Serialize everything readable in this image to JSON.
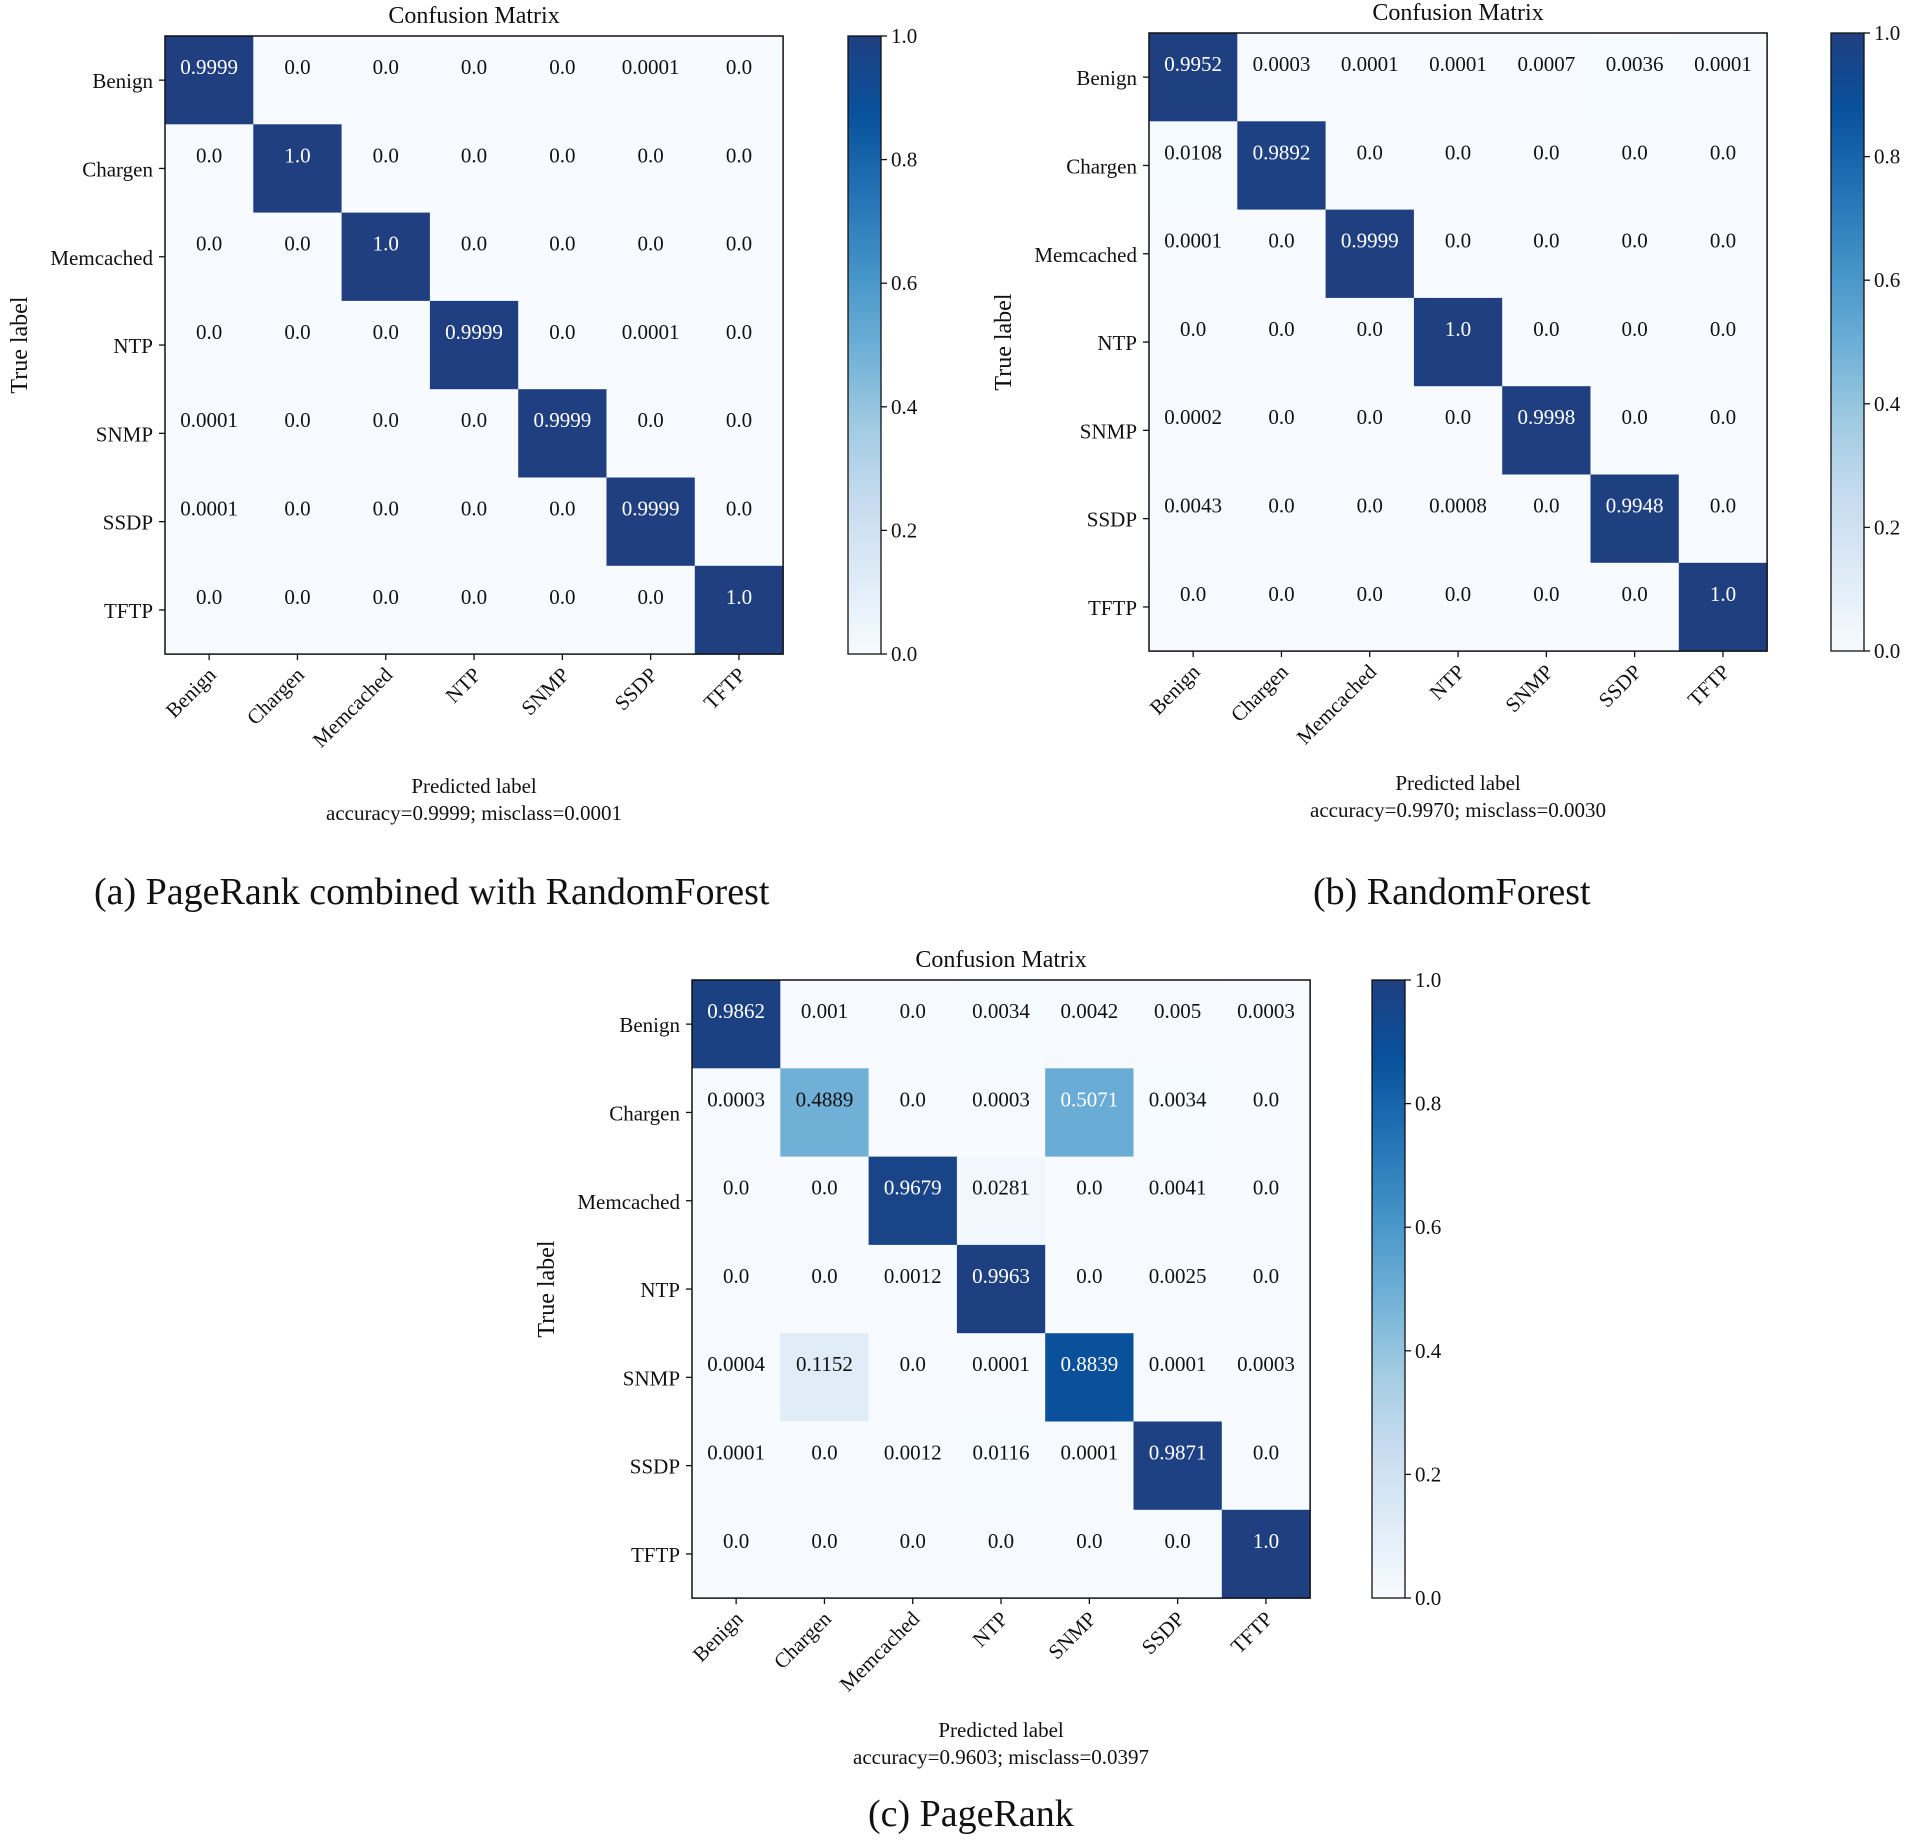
{
  "colorscale": {
    "name": "Blues",
    "stops": [
      "#f7fbff",
      "#deebf7",
      "#c6dbef",
      "#9ecae1",
      "#6baed6",
      "#4292c6",
      "#2171b5",
      "#08519c",
      "#08306b"
    ],
    "diag_color": "#1f3f80"
  },
  "chart_data": [
    {
      "type": "heatmap",
      "panel": "a",
      "title": "Confusion Matrix",
      "caption": "(a) PageRank combined with RandomForest",
      "xlabel": "Predicted label",
      "ylabel": "True label",
      "footer": "accuracy=0.9999; misclass=0.0001",
      "labels": [
        "Benign",
        "Chargen",
        "Memcached",
        "NTP",
        "SNMP",
        "SSDP",
        "TFTP"
      ],
      "matrix": [
        [
          "0.9999",
          "0.0",
          "0.0",
          "0.0",
          "0.0",
          "0.0001",
          "0.0"
        ],
        [
          "0.0",
          "1.0",
          "0.0",
          "0.0",
          "0.0",
          "0.0",
          "0.0"
        ],
        [
          "0.0",
          "0.0",
          "1.0",
          "0.0",
          "0.0",
          "0.0",
          "0.0"
        ],
        [
          "0.0",
          "0.0",
          "0.0",
          "0.9999",
          "0.0",
          "0.0001",
          "0.0"
        ],
        [
          "0.0001",
          "0.0",
          "0.0",
          "0.0",
          "0.9999",
          "0.0",
          "0.0"
        ],
        [
          "0.0001",
          "0.0",
          "0.0",
          "0.0",
          "0.0",
          "0.9999",
          "0.0"
        ],
        [
          "0.0",
          "0.0",
          "0.0",
          "0.0",
          "0.0",
          "0.0",
          "1.0"
        ]
      ],
      "colorbar": {
        "range": [
          0,
          1
        ],
        "ticks": [
          "0.0",
          "0.2",
          "0.4",
          "0.6",
          "0.8",
          "1.0"
        ]
      }
    },
    {
      "type": "heatmap",
      "panel": "b",
      "title": "Confusion Matrix",
      "caption": "(b) RandomForest",
      "xlabel": "Predicted label",
      "ylabel": "True label",
      "footer": "accuracy=0.9970; misclass=0.0030",
      "labels": [
        "Benign",
        "Chargen",
        "Memcached",
        "NTP",
        "SNMP",
        "SSDP",
        "TFTP"
      ],
      "matrix": [
        [
          "0.9952",
          "0.0003",
          "0.0001",
          "0.0001",
          "0.0007",
          "0.0036",
          "0.0001"
        ],
        [
          "0.0108",
          "0.9892",
          "0.0",
          "0.0",
          "0.0",
          "0.0",
          "0.0"
        ],
        [
          "0.0001",
          "0.0",
          "0.9999",
          "0.0",
          "0.0",
          "0.0",
          "0.0"
        ],
        [
          "0.0",
          "0.0",
          "0.0",
          "1.0",
          "0.0",
          "0.0",
          "0.0"
        ],
        [
          "0.0002",
          "0.0",
          "0.0",
          "0.0",
          "0.9998",
          "0.0",
          "0.0"
        ],
        [
          "0.0043",
          "0.0",
          "0.0",
          "0.0008",
          "0.0",
          "0.9948",
          "0.0"
        ],
        [
          "0.0",
          "0.0",
          "0.0",
          "0.0",
          "0.0",
          "0.0",
          "1.0"
        ]
      ],
      "colorbar": {
        "range": [
          0,
          1
        ],
        "ticks": [
          "0.0",
          "0.2",
          "0.4",
          "0.6",
          "0.8",
          "1.0"
        ]
      }
    },
    {
      "type": "heatmap",
      "panel": "c",
      "title": "Confusion Matrix",
      "caption": "(c) PageRank",
      "xlabel": "Predicted label",
      "ylabel": "True label",
      "footer": "accuracy=0.9603; misclass=0.0397",
      "labels": [
        "Benign",
        "Chargen",
        "Memcached",
        "NTP",
        "SNMP",
        "SSDP",
        "TFTP"
      ],
      "matrix": [
        [
          "0.9862",
          "0.001",
          "0.0",
          "0.0034",
          "0.0042",
          "0.005",
          "0.0003"
        ],
        [
          "0.0003",
          "0.4889",
          "0.0",
          "0.0003",
          "0.5071",
          "0.0034",
          "0.0"
        ],
        [
          "0.0",
          "0.0",
          "0.9679",
          "0.0281",
          "0.0",
          "0.0041",
          "0.0"
        ],
        [
          "0.0",
          "0.0",
          "0.0012",
          "0.9963",
          "0.0",
          "0.0025",
          "0.0"
        ],
        [
          "0.0004",
          "0.1152",
          "0.0",
          "0.0001",
          "0.8839",
          "0.0001",
          "0.0003"
        ],
        [
          "0.0001",
          "0.0",
          "0.0012",
          "0.0116",
          "0.0001",
          "0.9871",
          "0.0"
        ],
        [
          "0.0",
          "0.0",
          "0.0",
          "0.0",
          "0.0",
          "0.0",
          "1.0"
        ]
      ],
      "colorbar": {
        "range": [
          0,
          1
        ],
        "ticks": [
          "0.0",
          "0.2",
          "0.4",
          "0.6",
          "0.8",
          "1.0"
        ]
      }
    }
  ]
}
